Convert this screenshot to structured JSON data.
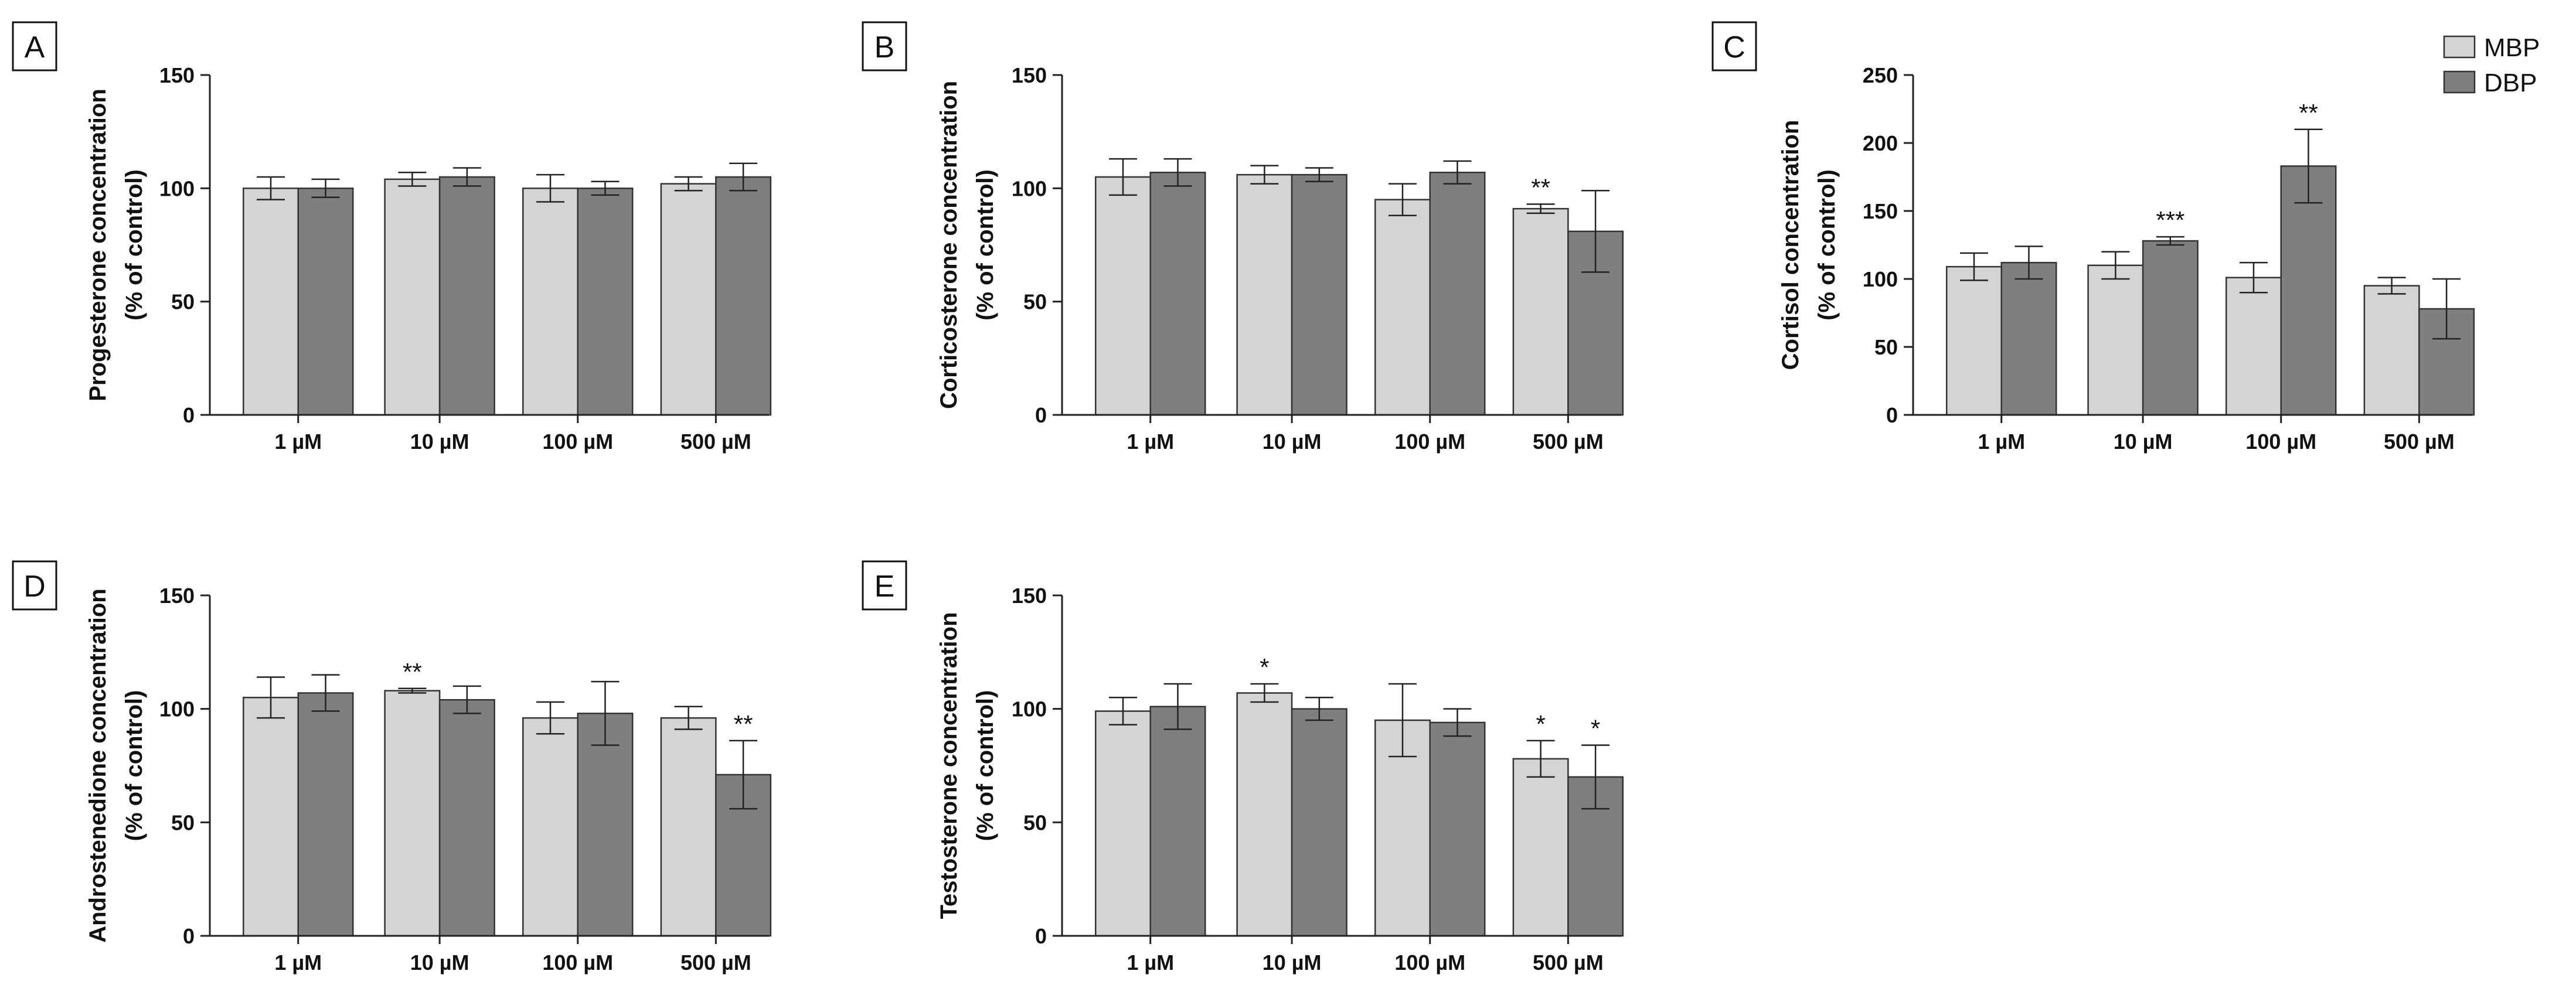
{
  "legend": [
    {
      "name": "MBP",
      "color": "#d4d4d4"
    },
    {
      "name": "DBP",
      "color": "#7f7f7f"
    }
  ],
  "chart_data": [
    {
      "type": "bar",
      "panel": "A",
      "categories": [
        "1 µM",
        "10 µM",
        "100 µM",
        "500 µM"
      ],
      "ylabel_line1": "Progesterone concentration",
      "ylabel_line2": "(% of control)",
      "ylim": [
        0,
        150
      ],
      "yticks": [
        0,
        50,
        100,
        150
      ],
      "series": [
        {
          "name": "MBP",
          "values": [
            100,
            104,
            100,
            102
          ],
          "errors": [
            5,
            3,
            6,
            3
          ],
          "significance": [
            "",
            "",
            "",
            ""
          ]
        },
        {
          "name": "DBP",
          "values": [
            100,
            105,
            100,
            105
          ],
          "errors": [
            4,
            4,
            3,
            6
          ],
          "significance": [
            "",
            "",
            "",
            ""
          ]
        }
      ]
    },
    {
      "type": "bar",
      "panel": "B",
      "categories": [
        "1 µM",
        "10 µM",
        "100 µM",
        "500 µM"
      ],
      "ylabel_line1": "Corticosterone concentration",
      "ylabel_line2": "(% of control)",
      "ylim": [
        0,
        150
      ],
      "yticks": [
        0,
        50,
        100,
        150
      ],
      "series": [
        {
          "name": "MBP",
          "values": [
            105,
            106,
            95,
            91
          ],
          "errors": [
            8,
            4,
            7,
            2
          ],
          "significance": [
            "",
            "",
            "",
            "**"
          ]
        },
        {
          "name": "DBP",
          "values": [
            107,
            106,
            107,
            81
          ],
          "errors": [
            6,
            3,
            5,
            18
          ],
          "significance": [
            "",
            "",
            "",
            ""
          ]
        }
      ]
    },
    {
      "type": "bar",
      "panel": "C",
      "categories": [
        "1 µM",
        "10 µM",
        "100 µM",
        "500 µM"
      ],
      "ylabel_line1": "Cortisol concentration",
      "ylabel_line2": "(% of control)",
      "ylim": [
        0,
        250
      ],
      "yticks": [
        0,
        50,
        100,
        150,
        200,
        250
      ],
      "series": [
        {
          "name": "MBP",
          "values": [
            109,
            110,
            101,
            95
          ],
          "errors": [
            10,
            10,
            11,
            6
          ],
          "significance": [
            "",
            "",
            "",
            ""
          ]
        },
        {
          "name": "DBP",
          "values": [
            112,
            128,
            183,
            78
          ],
          "errors": [
            12,
            3,
            27,
            22
          ],
          "significance": [
            "",
            "***",
            "**",
            ""
          ]
        }
      ]
    },
    {
      "type": "bar",
      "panel": "D",
      "categories": [
        "1 µM",
        "10 µM",
        "100 µM",
        "500 µM"
      ],
      "ylabel_line1": "Androstenedione concentration",
      "ylabel_line2": "(% of control)",
      "ylim": [
        0,
        150
      ],
      "yticks": [
        0,
        50,
        100,
        150
      ],
      "series": [
        {
          "name": "MBP",
          "values": [
            105,
            108,
            96,
            96
          ],
          "errors": [
            9,
            1,
            7,
            5
          ],
          "significance": [
            "",
            "**",
            "",
            ""
          ]
        },
        {
          "name": "DBP",
          "values": [
            107,
            104,
            98,
            71
          ],
          "errors": [
            8,
            6,
            14,
            15
          ],
          "significance": [
            "",
            "",
            "",
            "**"
          ]
        }
      ]
    },
    {
      "type": "bar",
      "panel": "E",
      "categories": [
        "1 µM",
        "10 µM",
        "100 µM",
        "500 µM"
      ],
      "ylabel_line1": "Testosterone concentration",
      "ylabel_line2": "(% of control)",
      "ylim": [
        0,
        150
      ],
      "yticks": [
        0,
        50,
        100,
        150
      ],
      "series": [
        {
          "name": "MBP",
          "values": [
            99,
            107,
            95,
            78
          ],
          "errors": [
            6,
            4,
            16,
            8
          ],
          "significance": [
            "",
            "*",
            "",
            "*"
          ]
        },
        {
          "name": "DBP",
          "values": [
            101,
            100,
            94,
            70
          ],
          "errors": [
            10,
            5,
            6,
            14
          ],
          "significance": [
            "",
            "",
            "",
            "*"
          ]
        }
      ]
    }
  ]
}
